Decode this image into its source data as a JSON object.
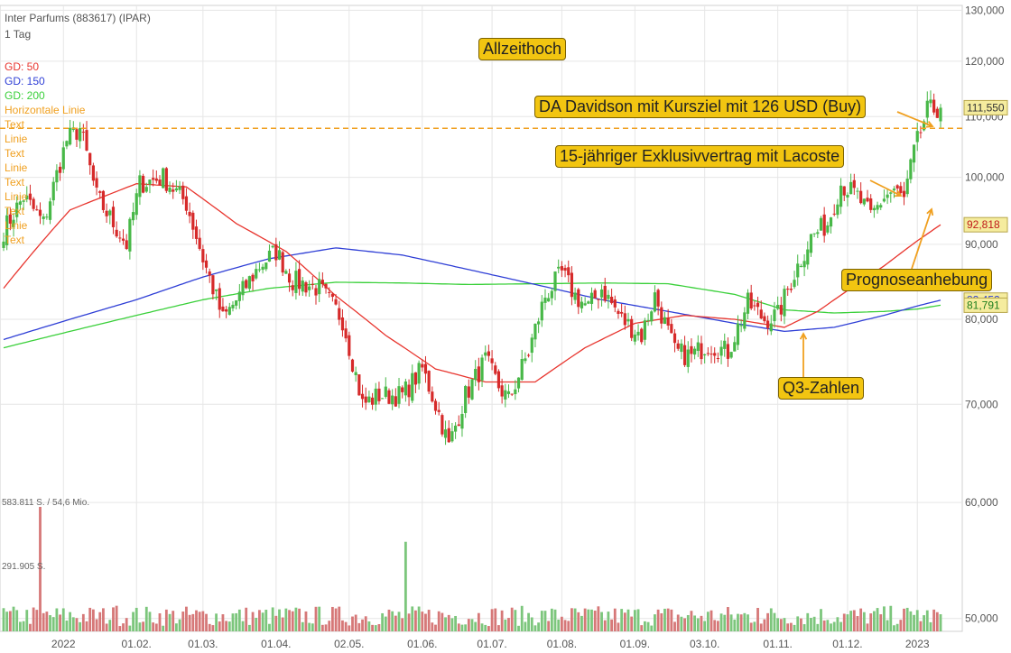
{
  "header": {
    "instrument": "Inter Parfums (883617) (IPAR)",
    "interval": "1 Tag"
  },
  "legend": [
    {
      "label": "GD: 50",
      "color": "#e8352e"
    },
    {
      "label": "GD: 150",
      "color": "#2f3fd6"
    },
    {
      "label": "GD: 200",
      "color": "#3ad03a"
    },
    {
      "label": "Horizontale Linie",
      "color": "#f0a020"
    },
    {
      "label": "Text",
      "color": "#f0a020"
    },
    {
      "label": "Linie",
      "color": "#f0a020"
    },
    {
      "label": "Text",
      "color": "#f0a020"
    },
    {
      "label": "Linie",
      "color": "#f0a020"
    },
    {
      "label": "Text",
      "color": "#f0a020"
    },
    {
      "label": "Linie",
      "color": "#f0a020"
    },
    {
      "label": "Text",
      "color": "#f0a020"
    },
    {
      "label": "Linie",
      "color": "#f0a020"
    },
    {
      "label": "Text",
      "color": "#f0a020"
    }
  ],
  "annotations": {
    "ath": "Allzeithoch",
    "davidson": "DA Davidson mit Kursziel mit 126 USD (Buy)",
    "lacoste": "15-jähriger Exklusivvertrag mit Lacoste",
    "prognose": "Prognoseanhebung",
    "q3": "Q3-Zahlen"
  },
  "volume_labels": {
    "max": "583.811 S. / 54,6 Mio.",
    "mid": "291.905 S."
  },
  "colors": {
    "up": "#48b848",
    "down": "#d62a2a",
    "vol_up": "#7cc67c",
    "vol_down": "#d67878",
    "ma50": "#e8352e",
    "ma150": "#2f3fd6",
    "ma200": "#3ad03a",
    "hline": "#f0a020",
    "grid": "#e6e6e6"
  },
  "chart_data": {
    "type": "candlestick",
    "y_scale": "log",
    "ylim": [
      49000,
      131000
    ],
    "y_ticks": [
      "130,000",
      "120,000",
      "110,000",
      "100,000",
      "90,000",
      "80,000",
      "70,000",
      "60,000",
      "50,000"
    ],
    "y_tick_values": [
      130000,
      120000,
      110000,
      100000,
      90000,
      80000,
      70000,
      60000,
      50000
    ],
    "x_ticks": [
      "2022",
      "01.02.",
      "01.03.",
      "01.04.",
      "02.05.",
      "01.06.",
      "01.07.",
      "01.08.",
      "01.09.",
      "03.10.",
      "01.11.",
      "01.12.",
      "2023"
    ],
    "x_tick_bar_index": [
      18,
      40,
      60,
      82,
      104,
      126,
      147,
      168,
      190,
      211,
      233,
      254,
      275
    ],
    "bar_count": 283,
    "horizontal_line": 108000,
    "price_labels": [
      {
        "text": "111,550",
        "value": 111550,
        "series": "last"
      },
      {
        "text": "92,818",
        "value": 92818,
        "series": "ma50"
      },
      {
        "text": "82,452",
        "value": 82452,
        "series": "ma150"
      },
      {
        "text": "81,791",
        "value": 81791,
        "series": "ma200"
      }
    ],
    "key_points": [
      {
        "bar": 0,
        "close": 92000
      },
      {
        "bar": 6,
        "close": 97000
      },
      {
        "bar": 12,
        "close": 93000
      },
      {
        "bar": 19,
        "close": 106000
      },
      {
        "bar": 23,
        "close": 108000
      },
      {
        "bar": 28,
        "close": 97000
      },
      {
        "bar": 33,
        "close": 93000
      },
      {
        "bar": 37,
        "close": 90000
      },
      {
        "bar": 41,
        "close": 99000
      },
      {
        "bar": 48,
        "close": 100000
      },
      {
        "bar": 55,
        "close": 96000
      },
      {
        "bar": 60,
        "close": 88000
      },
      {
        "bar": 66,
        "close": 80000
      },
      {
        "bar": 71,
        "close": 83000
      },
      {
        "bar": 77,
        "close": 87000
      },
      {
        "bar": 82,
        "close": 89000
      },
      {
        "bar": 87,
        "close": 85000
      },
      {
        "bar": 95,
        "close": 84000
      },
      {
        "bar": 102,
        "close": 80000
      },
      {
        "bar": 108,
        "close": 70000
      },
      {
        "bar": 113,
        "close": 71000
      },
      {
        "bar": 120,
        "close": 71000
      },
      {
        "bar": 126,
        "close": 74000
      },
      {
        "bar": 131,
        "close": 69000
      },
      {
        "bar": 134,
        "close": 65500
      },
      {
        "bar": 139,
        "close": 71000
      },
      {
        "bar": 145,
        "close": 75000
      },
      {
        "bar": 149,
        "close": 72000
      },
      {
        "bar": 152,
        "close": 70500
      },
      {
        "bar": 158,
        "close": 76000
      },
      {
        "bar": 163,
        "close": 83000
      },
      {
        "bar": 168,
        "close": 86000
      },
      {
        "bar": 172,
        "close": 83000
      },
      {
        "bar": 176,
        "close": 81500
      },
      {
        "bar": 180,
        "close": 84000
      },
      {
        "bar": 186,
        "close": 80000
      },
      {
        "bar": 192,
        "close": 78000
      },
      {
        "bar": 196,
        "close": 83000
      },
      {
        "bar": 202,
        "close": 76000
      },
      {
        "bar": 207,
        "close": 75500
      },
      {
        "bar": 212,
        "close": 77000
      },
      {
        "bar": 218,
        "close": 76000
      },
      {
        "bar": 224,
        "close": 82000
      },
      {
        "bar": 229,
        "close": 80000
      },
      {
        "bar": 233,
        "close": 80500
      },
      {
        "bar": 238,
        "close": 86000
      },
      {
        "bar": 243,
        "close": 91000
      },
      {
        "bar": 248,
        "close": 93000
      },
      {
        "bar": 252,
        "close": 99000
      },
      {
        "bar": 257,
        "close": 97000
      },
      {
        "bar": 261,
        "close": 94000
      },
      {
        "bar": 265,
        "close": 97000
      },
      {
        "bar": 268,
        "close": 98000
      },
      {
        "bar": 271,
        "close": 96500
      },
      {
        "bar": 274,
        "close": 104000
      },
      {
        "bar": 278,
        "close": 111000
      },
      {
        "bar": 282,
        "close": 111550
      }
    ],
    "ma50_points": [
      {
        "bar": 0,
        "value": 84000
      },
      {
        "bar": 20,
        "value": 95000
      },
      {
        "bar": 40,
        "value": 99000
      },
      {
        "bar": 55,
        "value": 98500
      },
      {
        "bar": 70,
        "value": 93000
      },
      {
        "bar": 85,
        "value": 89000
      },
      {
        "bar": 100,
        "value": 83000
      },
      {
        "bar": 115,
        "value": 78000
      },
      {
        "bar": 130,
        "value": 74000
      },
      {
        "bar": 145,
        "value": 72500
      },
      {
        "bar": 160,
        "value": 72500
      },
      {
        "bar": 175,
        "value": 76500
      },
      {
        "bar": 190,
        "value": 79500
      },
      {
        "bar": 205,
        "value": 80500
      },
      {
        "bar": 220,
        "value": 80000
      },
      {
        "bar": 235,
        "value": 79000
      },
      {
        "bar": 245,
        "value": 81000
      },
      {
        "bar": 255,
        "value": 84000
      },
      {
        "bar": 265,
        "value": 87000
      },
      {
        "bar": 275,
        "value": 90500
      },
      {
        "bar": 282,
        "value": 92818
      }
    ],
    "ma150_points": [
      {
        "bar": 0,
        "value": 77500
      },
      {
        "bar": 20,
        "value": 80000
      },
      {
        "bar": 40,
        "value": 82500
      },
      {
        "bar": 60,
        "value": 85500
      },
      {
        "bar": 80,
        "value": 88000
      },
      {
        "bar": 100,
        "value": 89500
      },
      {
        "bar": 120,
        "value": 88500
      },
      {
        "bar": 140,
        "value": 86500
      },
      {
        "bar": 160,
        "value": 84500
      },
      {
        "bar": 180,
        "value": 82500
      },
      {
        "bar": 200,
        "value": 81000
      },
      {
        "bar": 220,
        "value": 79500
      },
      {
        "bar": 235,
        "value": 78500
      },
      {
        "bar": 250,
        "value": 79000
      },
      {
        "bar": 265,
        "value": 80500
      },
      {
        "bar": 275,
        "value": 81700
      },
      {
        "bar": 282,
        "value": 82452
      }
    ],
    "ma200_points": [
      {
        "bar": 0,
        "value": 76500
      },
      {
        "bar": 20,
        "value": 78500
      },
      {
        "bar": 40,
        "value": 80500
      },
      {
        "bar": 60,
        "value": 82500
      },
      {
        "bar": 80,
        "value": 84000
      },
      {
        "bar": 100,
        "value": 84800
      },
      {
        "bar": 120,
        "value": 84700
      },
      {
        "bar": 140,
        "value": 84500
      },
      {
        "bar": 160,
        "value": 84600
      },
      {
        "bar": 180,
        "value": 84700
      },
      {
        "bar": 200,
        "value": 84600
      },
      {
        "bar": 220,
        "value": 83200
      },
      {
        "bar": 235,
        "value": 81200
      },
      {
        "bar": 250,
        "value": 80800
      },
      {
        "bar": 265,
        "value": 81000
      },
      {
        "bar": 275,
        "value": 81300
      },
      {
        "bar": 282,
        "value": 81791
      }
    ],
    "volume_ylim": [
      0,
      583811
    ],
    "volume_spikes": [
      {
        "bar": 11,
        "value": 583811
      },
      {
        "bar": 121,
        "value": 420000
      },
      {
        "bar": 34,
        "value": 120000
      },
      {
        "bar": 227,
        "value": 110000
      },
      {
        "bar": 275,
        "value": 100000
      }
    ]
  }
}
